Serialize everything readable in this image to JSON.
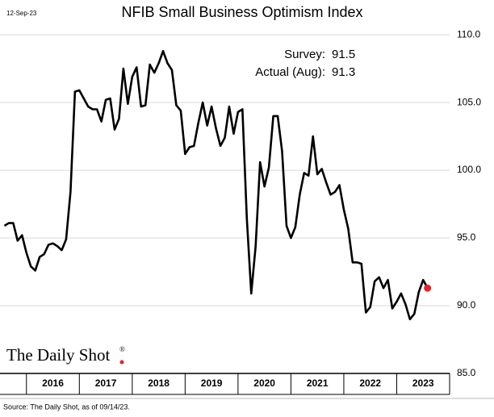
{
  "chart_data": {
    "type": "line",
    "title": "NFIB Small Business Optimism Index",
    "date": "12-Sep-23",
    "source": "Source: The Daily Shot, as of 09/14/23.",
    "logo": "The Daily Shot",
    "logo_mark": "®",
    "annotations": [
      {
        "label": "Survey:",
        "value": 91.5
      },
      {
        "label": "Actual (Aug):",
        "value": 91.3
      }
    ],
    "line_color": "#000000",
    "last_color": "#e8202a",
    "grid": true,
    "x": [
      2015.583,
      2015.667,
      2015.75,
      2015.833,
      2015.917,
      2016,
      2016.083,
      2016.167,
      2016.25,
      2016.333,
      2016.417,
      2016.5,
      2016.583,
      2016.667,
      2016.75,
      2016.833,
      2016.917,
      2017,
      2017.083,
      2017.167,
      2017.25,
      2017.333,
      2017.417,
      2017.5,
      2017.583,
      2017.667,
      2017.75,
      2017.833,
      2017.917,
      2018,
      2018.083,
      2018.167,
      2018.25,
      2018.333,
      2018.417,
      2018.5,
      2018.583,
      2018.667,
      2018.75,
      2018.833,
      2018.917,
      2019,
      2019.083,
      2019.167,
      2019.25,
      2019.333,
      2019.417,
      2019.5,
      2019.583,
      2019.667,
      2019.75,
      2019.833,
      2019.917,
      2020,
      2020.083,
      2020.167,
      2020.25,
      2020.333,
      2020.417,
      2020.5,
      2020.583,
      2020.667,
      2020.75,
      2020.833,
      2020.917,
      2021,
      2021.083,
      2021.167,
      2021.25,
      2021.333,
      2021.417,
      2021.5,
      2021.583,
      2021.667,
      2021.75,
      2021.833,
      2021.917,
      2022,
      2022.083,
      2022.167,
      2022.25,
      2022.333,
      2022.417,
      2022.5,
      2022.583,
      2022.667,
      2022.75,
      2022.833,
      2022.917,
      2023,
      2023.083,
      2023.167,
      2023.25,
      2023.333,
      2023.417,
      2023.5,
      2023.583
    ],
    "values": [
      95.9,
      96.1,
      96.1,
      94.8,
      95.2,
      93.9,
      92.9,
      92.6,
      93.6,
      93.8,
      94.5,
      94.6,
      94.4,
      94.1,
      94.9,
      98.4,
      105.8,
      105.9,
      105.3,
      104.7,
      104.5,
      104.5,
      103.6,
      105.2,
      105.3,
      103.0,
      103.8,
      107.5,
      104.9,
      106.9,
      107.6,
      104.7,
      104.8,
      107.8,
      107.2,
      107.9,
      108.8,
      107.9,
      107.4,
      104.8,
      104.4,
      101.2,
      101.7,
      101.8,
      103.5,
      105.0,
      103.3,
      104.7,
      103.1,
      101.8,
      102.4,
      104.7,
      102.7,
      104.3,
      104.5,
      96.4,
      90.9,
      94.4,
      100.6,
      98.8,
      100.2,
      104.0,
      104.0,
      101.4,
      95.9,
      95.0,
      95.8,
      98.2,
      99.8,
      99.6,
      102.5,
      99.7,
      100.1,
      99.1,
      98.2,
      98.4,
      98.9,
      97.1,
      95.7,
      93.2,
      93.2,
      93.1,
      89.5,
      89.9,
      91.8,
      92.1,
      91.3,
      91.9,
      89.8,
      90.3,
      90.9,
      90.1,
      89.0,
      89.4,
      91.0,
      91.9,
      91.3
    ],
    "xlim": [
      2015.5,
      2024
    ],
    "xticks": [
      {
        "value": 2016.5,
        "label": "2016"
      },
      {
        "value": 2017.5,
        "label": "2017"
      },
      {
        "value": 2018.5,
        "label": "2018"
      },
      {
        "value": 2019.5,
        "label": "2019"
      },
      {
        "value": 2020.5,
        "label": "2020"
      },
      {
        "value": 2021.5,
        "label": "2021"
      },
      {
        "value": 2022.5,
        "label": "2022"
      },
      {
        "value": 2023.5,
        "label": "2023"
      }
    ],
    "ylim": [
      85,
      110.9
    ],
    "yticks": [
      {
        "value": 85,
        "label": "85.0"
      },
      {
        "value": 90,
        "label": "90.0"
      },
      {
        "value": 95,
        "label": "95.0"
      },
      {
        "value": 100,
        "label": "100.0"
      },
      {
        "value": 105,
        "label": "105.0"
      },
      {
        "value": 110,
        "label": "110.0"
      }
    ]
  }
}
